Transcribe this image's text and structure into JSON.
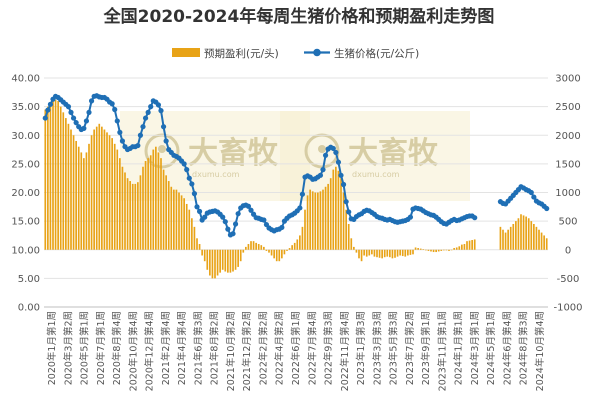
{
  "chart_data": {
    "type": "bar+line",
    "title": "全国2020-2024年每周生猪价格和预期盈利走势图",
    "legend": {
      "placement": "top-center",
      "items": [
        {
          "name": "预期盈利(元/头)",
          "type": "bar",
          "color": "#e8a317"
        },
        {
          "name": "生猪价格(元/公斤)",
          "type": "line",
          "color": "#1f6fb5"
        }
      ]
    },
    "watermark": "大畜牧 dxumu.com",
    "y_left": {
      "min": 0,
      "max": 40,
      "ticks": [
        "0.00",
        "5.00",
        "10.00",
        "15.00",
        "20.00",
        "25.00",
        "30.00",
        "35.00",
        "40.00"
      ]
    },
    "y_right": {
      "min": -1000,
      "max": 3000,
      "ticks": [
        "-1000",
        "-500",
        "0",
        "500",
        "1000",
        "1500",
        "2000",
        "2500",
        "3000"
      ]
    },
    "x_ticks": [
      "2020年1月第1周",
      "2020年3月第2周",
      "2020年5月第1周",
      "2020年7月第1周",
      "2020年8月第4周",
      "2020年10月第4周",
      "2020年12月第4周",
      "2021年2月第4周",
      "2021年4月第4周",
      "2021年6月第3周",
      "2021年8月第2周",
      "2021年10月第2周",
      "2021年12月第2周",
      "2022年2月第2周",
      "2022年4月第2周",
      "2022年6月第1周",
      "2022年7月第4周",
      "2022年9月第3周",
      "2022年11月第4周",
      "2023年1月第3周",
      "2023年3月第3周",
      "2023年5月第3周",
      "2023年7月第2周",
      "2023年9月第1周",
      "2023年11月第1周",
      "2024年1月第1周",
      "2024年3月第1周",
      "2024年5月第1周",
      "2024年6月第4周",
      "2024年8月第3周",
      "2024年10月第4周"
    ],
    "series": [
      {
        "name": "生猪价格(元/公斤)",
        "axis": "left",
        "values": [
          33.0,
          34.4,
          35.4,
          36.3,
          36.8,
          36.6,
          36.2,
          35.8,
          35.4,
          35.0,
          34.0,
          33.0,
          32.2,
          31.5,
          31.0,
          31.2,
          32.5,
          34.0,
          36.0,
          36.8,
          36.9,
          36.7,
          36.6,
          36.6,
          36.3,
          35.8,
          35.5,
          34.5,
          32.5,
          30.5,
          29.0,
          28.0,
          27.5,
          27.7,
          28.0,
          28.0,
          28.2,
          30.0,
          31.5,
          33.0,
          34.0,
          35.0,
          36.0,
          35.8,
          35.3,
          34.3,
          31.5,
          29.0,
          27.5,
          27.0,
          26.5,
          26.3,
          26.0,
          25.5,
          25.0,
          24.0,
          22.5,
          21.5,
          19.8,
          17.5,
          16.7,
          15.2,
          15.7,
          16.4,
          16.6,
          16.7,
          16.8,
          16.6,
          16.2,
          15.7,
          14.9,
          13.6,
          12.6,
          12.8,
          14.5,
          16.3,
          17.3,
          17.7,
          17.8,
          17.6,
          16.9,
          16.2,
          15.6,
          15.5,
          15.3,
          15.2,
          14.4,
          13.8,
          13.5,
          13.3,
          13.5,
          13.6,
          13.9,
          15.0,
          15.5,
          15.9,
          16.1,
          16.4,
          16.8,
          17.3,
          19.7,
          22.7,
          22.9,
          22.7,
          22.3,
          22.4,
          22.7,
          23.0,
          24.0,
          26.5,
          27.6,
          27.9,
          27.7,
          27.0,
          25.3,
          23.0,
          21.4,
          18.4,
          16.6,
          15.4,
          15.3,
          15.8,
          16.1,
          16.3,
          16.7,
          16.9,
          16.8,
          16.5,
          16.2,
          15.8,
          15.6,
          15.5,
          15.3,
          15.2,
          15.3,
          15.1,
          14.9,
          14.8,
          14.9,
          15.0,
          15.1,
          15.3,
          15.7,
          17.1,
          17.3,
          17.2,
          17.1,
          16.8,
          16.5,
          16.3,
          16.1,
          16.0,
          15.7,
          15.3,
          14.9,
          14.6,
          14.5,
          14.8,
          15.1,
          15.3,
          15.1,
          15.2,
          15.4,
          15.6,
          15.8,
          15.9,
          15.9,
          15.6,
          null,
          null,
          null,
          null,
          null,
          null,
          null,
          null,
          null,
          18.4,
          18.1,
          18.0,
          18.5,
          19.0,
          19.5,
          20.0,
          20.5,
          21.0,
          20.8,
          20.5,
          20.3,
          20.0,
          19.2,
          18.5,
          18.2,
          18.0,
          17.6,
          17.2
        ]
      },
      {
        "name": "预期盈利(元/头)",
        "axis": "right",
        "values": [
          2450,
          2500,
          2550,
          2600,
          2620,
          2600,
          2500,
          2400,
          2300,
          2200,
          2100,
          2000,
          1900,
          1800,
          1700,
          1600,
          1700,
          1850,
          2000,
          2100,
          2150,
          2200,
          2150,
          2100,
          2050,
          2000,
          1950,
          1850,
          1750,
          1600,
          1450,
          1350,
          1250,
          1200,
          1150,
          1150,
          1180,
          1300,
          1450,
          1550,
          1600,
          1650,
          1750,
          1800,
          1700,
          1600,
          1400,
          1300,
          1200,
          1100,
          1050,
          1050,
          1000,
          950,
          900,
          800,
          700,
          550,
          400,
          200,
          100,
          -100,
          -200,
          -350,
          -450,
          -500,
          -500,
          -450,
          -400,
          -350,
          -380,
          -400,
          -400,
          -380,
          -350,
          -300,
          -200,
          -50,
          50,
          100,
          150,
          150,
          120,
          100,
          80,
          50,
          -20,
          -50,
          -100,
          -150,
          -200,
          -200,
          -150,
          -80,
          -20,
          30,
          80,
          120,
          180,
          250,
          400,
          700,
          950,
          1050,
          1020,
          1000,
          1000,
          1020,
          1050,
          1100,
          1150,
          1250,
          1400,
          1450,
          1380,
          1250,
          1000,
          700,
          450,
          200,
          50,
          -50,
          -150,
          -200,
          -100,
          -120,
          -100,
          -80,
          -120,
          -130,
          -140,
          -150,
          -130,
          -120,
          -130,
          -150,
          -140,
          -120,
          -100,
          -110,
          -120,
          -100,
          -90,
          -80,
          40,
          30,
          20,
          10,
          -10,
          -20,
          -30,
          -40,
          -40,
          -30,
          -20,
          -10,
          -10,
          -20,
          0,
          30,
          40,
          60,
          90,
          100,
          150,
          160,
          170,
          180,
          null,
          null,
          null,
          null,
          null,
          null,
          null,
          null,
          null,
          400,
          350,
          300,
          350,
          400,
          450,
          500,
          550,
          620,
          600,
          580,
          550,
          500,
          450,
          400,
          350,
          300,
          250,
          200
        ]
      }
    ]
  }
}
